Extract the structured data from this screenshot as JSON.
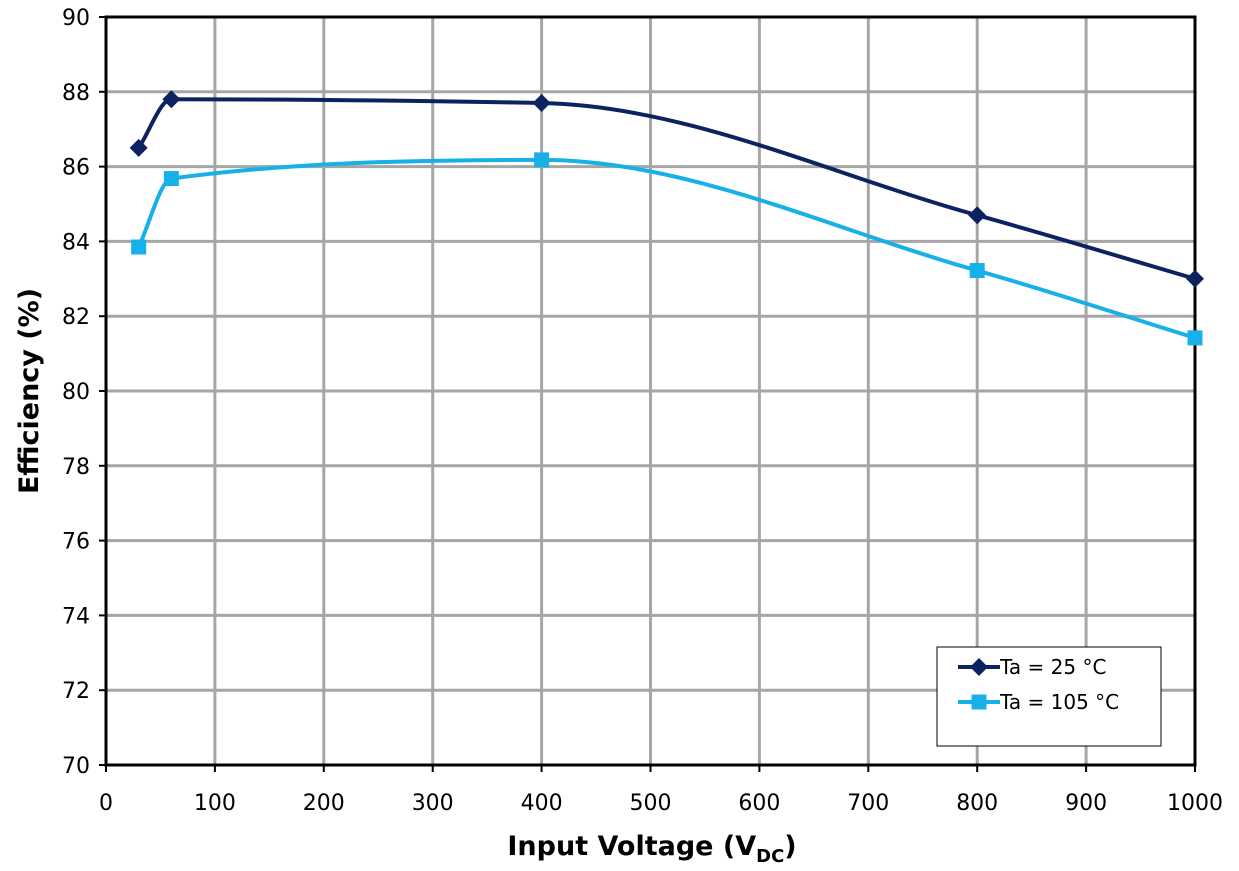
{
  "chart_data": {
    "type": "line",
    "xlabel": "Input Voltage (V",
    "xlabel_sub": "DC",
    "xlabel_end": ")",
    "ylabel": "Efficiency (%)",
    "xlim": [
      0,
      1000
    ],
    "ylim": [
      70,
      90
    ],
    "xticks": [
      0,
      100,
      200,
      300,
      400,
      500,
      600,
      700,
      800,
      900,
      1000
    ],
    "yticks": [
      70,
      72,
      74,
      76,
      78,
      80,
      82,
      84,
      86,
      88,
      90
    ],
    "grid": true,
    "legend_position": "bottom-right",
    "series": [
      {
        "name": "Ta = 25 °C",
        "color": "#0d2260",
        "marker": "diamond",
        "x": [
          30,
          60,
          400,
          800,
          1000
        ],
        "y": [
          86.5,
          87.8,
          87.7,
          84.7,
          83.0
        ]
      },
      {
        "name": "Ta = 105 °C",
        "color": "#17b0e8",
        "marker": "square",
        "x": [
          30,
          60,
          400,
          800,
          1000
        ],
        "y": [
          83.85,
          85.68,
          86.18,
          83.22,
          81.42
        ]
      }
    ]
  }
}
